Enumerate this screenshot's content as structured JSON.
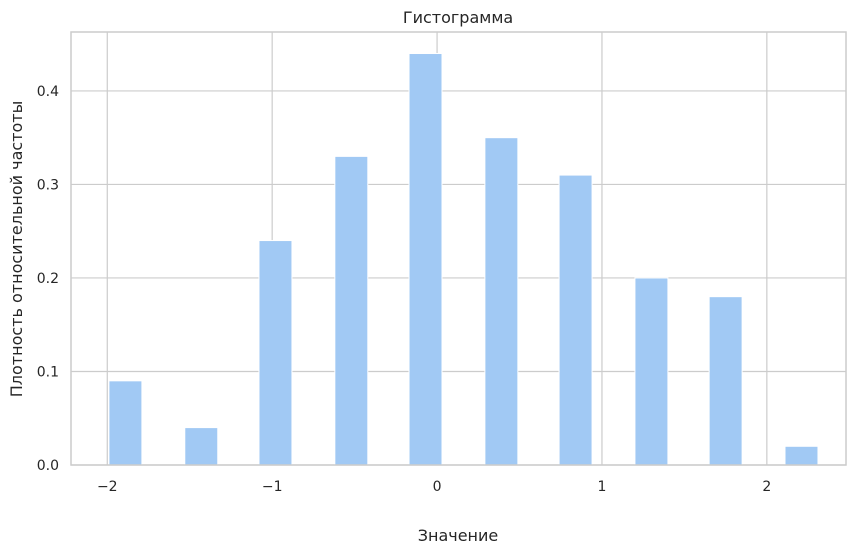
{
  "chart_data": {
    "type": "bar",
    "title": "Гистограмма",
    "xlabel": "Значение",
    "ylabel": "Плотность относительной частоты",
    "xlim": [
      -2.22,
      2.48
    ],
    "ylim": [
      0,
      0.463
    ],
    "xticks": [
      -2,
      -1,
      0,
      1,
      2
    ],
    "xtick_labels": [
      "−2",
      "−1",
      "0",
      "1",
      "2"
    ],
    "yticks": [
      0.0,
      0.1,
      0.2,
      0.3,
      0.4
    ],
    "ytick_labels": [
      "0.0",
      "0.1",
      "0.2",
      "0.3",
      "0.4"
    ],
    "grid": true,
    "bar_color": "#a1c9f4",
    "bars": [
      {
        "x0": -1.99,
        "x1": -1.79,
        "value": 0.09
      },
      {
        "x0": -1.53,
        "x1": -1.33,
        "value": 0.04
      },
      {
        "x0": -1.08,
        "x1": -0.88,
        "value": 0.24
      },
      {
        "x0": -0.62,
        "x1": -0.42,
        "value": 0.33
      },
      {
        "x0": -0.17,
        "x1": 0.03,
        "value": 0.44
      },
      {
        "x0": 0.29,
        "x1": 0.49,
        "value": 0.35
      },
      {
        "x0": 0.74,
        "x1": 0.94,
        "value": 0.31
      },
      {
        "x0": 1.2,
        "x1": 1.4,
        "value": 0.2
      },
      {
        "x0": 1.65,
        "x1": 1.85,
        "value": 0.18
      },
      {
        "x0": 2.11,
        "x1": 2.31,
        "value": 0.02
      }
    ]
  }
}
